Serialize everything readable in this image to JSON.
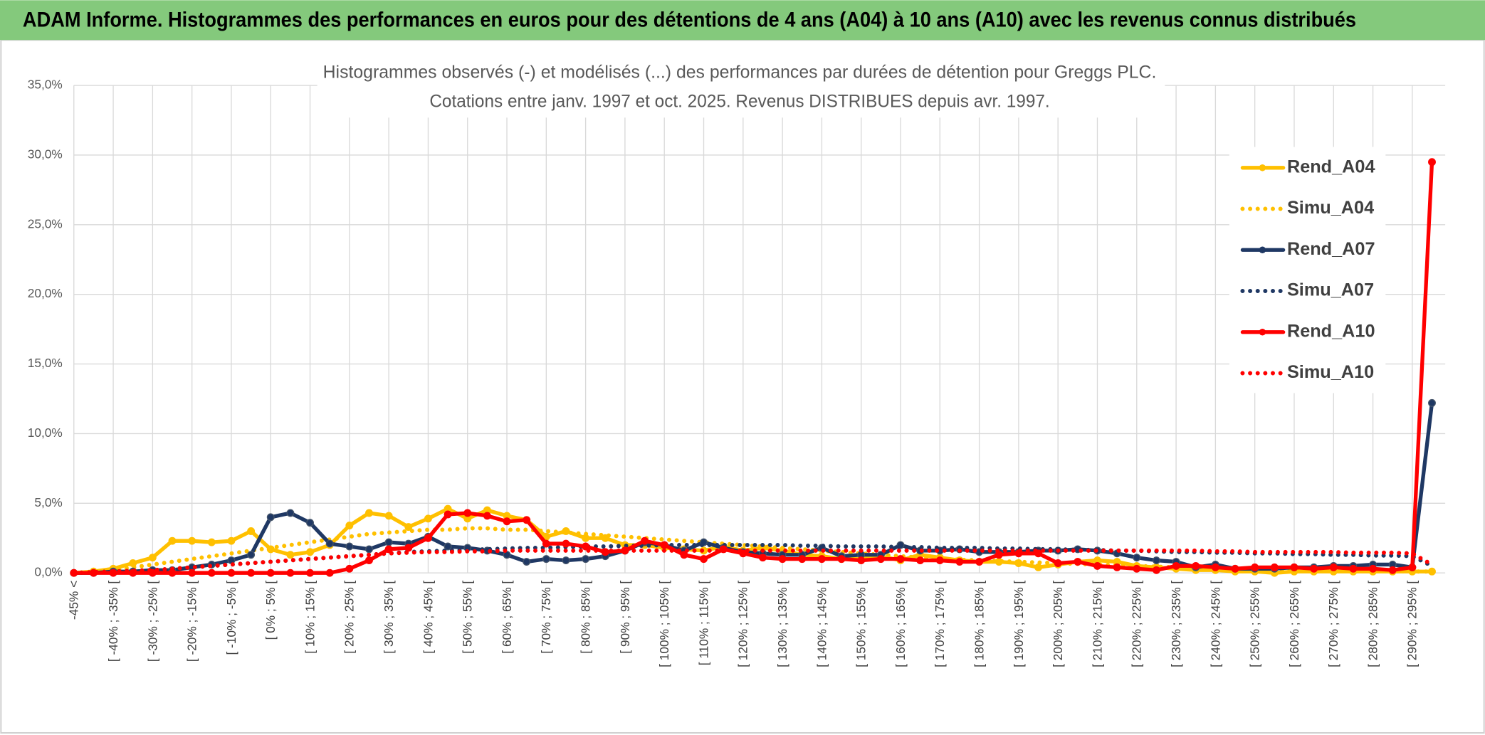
{
  "header": {
    "title": "ADAM Informe. Histogrammes des performances en euros pour des détentions de 4 ans (A04) à 10 ans (A10) avec les revenus connus distribués"
  },
  "chart_data": {
    "type": "line",
    "title": "Histogrammes observés (-) et modélisés (...) des performances par durées de détention pour Greggs PLC.",
    "subtitle": "Cotations entre janv. 1997 et oct. 2025. Revenus DISTRIBUES depuis avr. 1997.",
    "categories": [
      "-45% <",
      null,
      "[ -40% ; -35% [",
      null,
      "[ -30% ; -25% [",
      null,
      "[ -20% ; -15% [",
      null,
      "[ -10% ; -5% [",
      null,
      "[ 0% ; 5% [",
      null,
      "[ 10% ; 15% [",
      null,
      "[ 20% ; 25% [",
      null,
      "[ 30% ; 35% [",
      null,
      "[ 40% ; 45% [",
      null,
      "[ 50% ; 55% [",
      null,
      "[ 60% ; 65% [",
      null,
      "[ 70% ; 75% [",
      null,
      "[ 80% ; 85% [",
      null,
      "[ 90% ; 95% [",
      null,
      "[ 100% ; 105% [",
      null,
      "[ 110% ; 115% [",
      null,
      "[ 120% ; 125% [",
      null,
      "[ 130% ; 135% [",
      null,
      "[ 140% ; 145% [",
      null,
      "[ 150% ; 155% [",
      null,
      "[ 160% ; 165% [",
      null,
      "[ 170% ; 175% [",
      null,
      "[ 180% ; 185% [",
      null,
      "[ 190% ; 195% [",
      null,
      "[ 200% ; 205% [",
      null,
      "[ 210% ; 215% [",
      null,
      "[ 220% ; 225% [",
      null,
      "[ 230% ; 235% [",
      null,
      "[ 240% ; 245% [",
      null,
      "[ 250% ; 255% [",
      null,
      "[ 260% ; 265% [",
      null,
      "[ 270% ; 275% [",
      null,
      "[ 280% ; 285% [",
      null,
      "[ 290% ; 295% [",
      null
    ],
    "series": [
      {
        "name": "Rend_A04",
        "color": "#ffc000",
        "style": "solid",
        "marker": true,
        "values": [
          0,
          0.1,
          0.3,
          0.7,
          1.1,
          2.3,
          2.3,
          2.2,
          2.3,
          3.0,
          1.7,
          1.3,
          1.5,
          2.0,
          3.4,
          4.3,
          4.1,
          3.3,
          3.9,
          4.6,
          3.9,
          4.5,
          4.1,
          3.8,
          2.6,
          3.0,
          2.5,
          2.5,
          2.0,
          2.0,
          1.8,
          1.7,
          1.6,
          1.9,
          1.6,
          1.8,
          1.6,
          1.3,
          1.2,
          1.0,
          1.0,
          1.2,
          0.9,
          1.3,
          1.1,
          0.9,
          0.8,
          0.8,
          0.7,
          0.4,
          0.6,
          0.8,
          0.9,
          0.8,
          0.5,
          0.4,
          0.3,
          0.2,
          0.2,
          0.1,
          0.1,
          0,
          0.1,
          0.1,
          0.1,
          0.1,
          0.1,
          0.1,
          0.1,
          0.1
        ]
      },
      {
        "name": "Simu_A04",
        "color": "#ffc000",
        "style": "dotted",
        "marker": false,
        "values": [
          0,
          0.1,
          0.2,
          0.4,
          0.6,
          0.8,
          1.0,
          1.2,
          1.4,
          1.6,
          1.8,
          2.0,
          2.2,
          2.4,
          2.6,
          2.8,
          2.9,
          3.0,
          3.1,
          3.1,
          3.2,
          3.2,
          3.1,
          3.1,
          3.0,
          2.9,
          2.8,
          2.7,
          2.6,
          2.5,
          2.4,
          2.3,
          2.2,
          2.1,
          2.0,
          1.9,
          1.8,
          1.7,
          1.6,
          1.5,
          1.4,
          1.3,
          1.2,
          1.1,
          1.0,
          0.95,
          0.9,
          0.85,
          0.8,
          0.75,
          0.7,
          0.65,
          0.6,
          0.55,
          0.5,
          0.45,
          0.4,
          0.35,
          0.3,
          0.3,
          0.25,
          0.25,
          0.2,
          0.2,
          0.2,
          0.15,
          0.15,
          0.15,
          0.1,
          0.1
        ]
      },
      {
        "name": "Rend_A07",
        "color": "#1f3864",
        "style": "solid",
        "marker": true,
        "values": [
          0,
          0,
          0.1,
          0.1,
          0.2,
          0.2,
          0.4,
          0.6,
          0.9,
          1.3,
          4.0,
          4.3,
          3.6,
          2.1,
          1.9,
          1.7,
          2.2,
          2.1,
          2.6,
          1.9,
          1.8,
          1.6,
          1.3,
          0.8,
          1.0,
          0.9,
          1.0,
          1.2,
          1.6,
          2.2,
          2.0,
          1.6,
          2.2,
          1.8,
          1.5,
          1.4,
          1.3,
          1.3,
          1.8,
          1.2,
          1.3,
          1.3,
          2.0,
          1.6,
          1.6,
          1.7,
          1.5,
          1.5,
          1.5,
          1.6,
          1.6,
          1.7,
          1.6,
          1.4,
          1.1,
          0.9,
          0.8,
          0.4,
          0.6,
          0.3,
          0.3,
          0.3,
          0.4,
          0.4,
          0.5,
          0.5,
          0.6,
          0.6,
          0.4,
          12.2
        ]
      },
      {
        "name": "Simu_A07",
        "color": "#1f3864",
        "style": "dotted",
        "marker": false,
        "values": [
          0,
          0.05,
          0.1,
          0.15,
          0.2,
          0.3,
          0.4,
          0.5,
          0.6,
          0.7,
          0.8,
          0.9,
          1.0,
          1.1,
          1.2,
          1.3,
          1.4,
          1.5,
          1.55,
          1.6,
          1.65,
          1.7,
          1.75,
          1.8,
          1.8,
          1.85,
          1.9,
          1.9,
          1.95,
          1.95,
          2.0,
          2.0,
          2.0,
          2.0,
          2.0,
          2.0,
          2.0,
          1.95,
          1.95,
          1.9,
          1.9,
          1.9,
          1.85,
          1.85,
          1.8,
          1.8,
          1.8,
          1.75,
          1.75,
          1.7,
          1.7,
          1.65,
          1.65,
          1.6,
          1.6,
          1.55,
          1.5,
          1.5,
          1.45,
          1.45,
          1.4,
          1.4,
          1.35,
          1.35,
          1.3,
          1.3,
          1.25,
          1.25,
          1.2,
          0.5
        ]
      },
      {
        "name": "Rend_A10",
        "color": "#ff0000",
        "style": "solid",
        "marker": true,
        "values": [
          0,
          0,
          0,
          0,
          0,
          0,
          0,
          0,
          0,
          0,
          0,
          0,
          0,
          0,
          0.3,
          0.9,
          1.7,
          1.8,
          2.5,
          4.2,
          4.3,
          4.1,
          3.7,
          3.8,
          2.1,
          2.1,
          1.9,
          1.5,
          1.6,
          2.3,
          2.0,
          1.3,
          1.0,
          1.7,
          1.4,
          1.1,
          1.0,
          1.0,
          1.0,
          1.0,
          0.9,
          1.0,
          1.0,
          0.9,
          0.9,
          0.8,
          0.8,
          1.3,
          1.4,
          1.4,
          0.7,
          0.8,
          0.5,
          0.4,
          0.3,
          0.2,
          0.5,
          0.5,
          0.4,
          0.3,
          0.4,
          0.4,
          0.4,
          0.3,
          0.4,
          0.3,
          0.3,
          0.2,
          0.4,
          29.5
        ]
      },
      {
        "name": "Simu_A10",
        "color": "#ff0000",
        "style": "dotted",
        "marker": false,
        "values": [
          0,
          0.05,
          0.1,
          0.15,
          0.2,
          0.3,
          0.4,
          0.5,
          0.6,
          0.7,
          0.8,
          0.9,
          1.0,
          1.1,
          1.2,
          1.3,
          1.4,
          1.45,
          1.5,
          1.5,
          1.55,
          1.55,
          1.6,
          1.6,
          1.6,
          1.6,
          1.6,
          1.6,
          1.6,
          1.6,
          1.6,
          1.6,
          1.6,
          1.6,
          1.6,
          1.6,
          1.6,
          1.6,
          1.6,
          1.6,
          1.6,
          1.6,
          1.6,
          1.6,
          1.6,
          1.6,
          1.6,
          1.6,
          1.6,
          1.6,
          1.6,
          1.6,
          1.6,
          1.6,
          1.6,
          1.6,
          1.6,
          1.6,
          1.55,
          1.55,
          1.5,
          1.5,
          1.5,
          1.5,
          1.5,
          1.45,
          1.45,
          1.45,
          1.4,
          0.6
        ]
      }
    ],
    "ylim": [
      0,
      35
    ],
    "yticks": [
      {
        "value": 0,
        "label": "0,0%"
      },
      {
        "value": 5,
        "label": "5,0%"
      },
      {
        "value": 10,
        "label": "10,0%"
      },
      {
        "value": 15,
        "label": "15,0%"
      },
      {
        "value": 20,
        "label": "20,0%"
      },
      {
        "value": 25,
        "label": "25,0%"
      },
      {
        "value": 30,
        "label": "30,0%"
      },
      {
        "value": 35,
        "label": "35,0%"
      }
    ],
    "grid": true,
    "legend": "right"
  }
}
